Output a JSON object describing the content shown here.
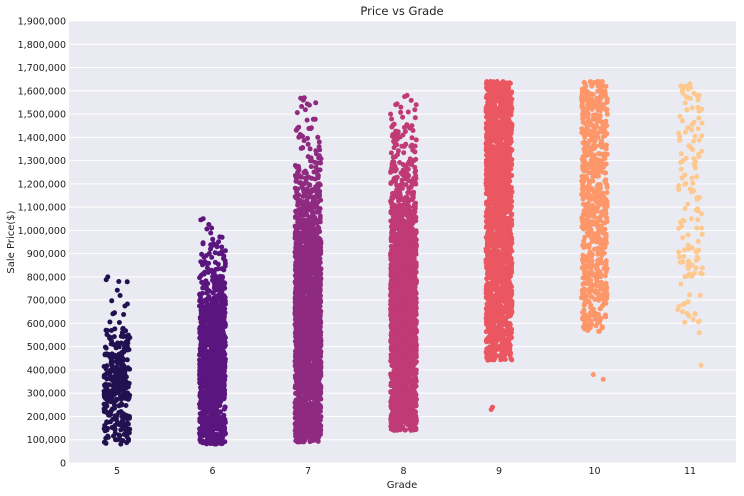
{
  "chart_data": {
    "type": "scatter",
    "style": "strip-plot",
    "title": "Price vs Grade",
    "xlabel": "Grade",
    "ylabel": "Sale Price($)",
    "categories": [
      "5",
      "6",
      "7",
      "8",
      "9",
      "10",
      "11"
    ],
    "ylim": [
      0,
      1900000
    ],
    "y_ticks": [
      0,
      100000,
      200000,
      300000,
      400000,
      500000,
      600000,
      700000,
      800000,
      900000,
      1000000,
      1100000,
      1200000,
      1300000,
      1400000,
      1500000,
      1600000,
      1700000,
      1800000,
      1900000
    ],
    "y_tick_labels": [
      "0",
      "100,000",
      "200,000",
      "300,000",
      "400,000",
      "500,000",
      "600,000",
      "700,000",
      "800,000",
      "900,000",
      "1,000,000",
      "1,100,000",
      "1,200,000",
      "1,300,000",
      "1,400,000",
      "1,500,000",
      "1,600,000",
      "1,700,000",
      "1,800,000",
      "1,900,000"
    ],
    "grid": true,
    "background": "#eaeaf2",
    "series": [
      {
        "category": "5",
        "color": "#221150",
        "min": 80000,
        "max": 800000,
        "count": 300,
        "outliers": [
          800000,
          780000,
          720000,
          560000,
          550000
        ]
      },
      {
        "category": "6",
        "color": "#5a167e",
        "min": 80000,
        "max": 1050000,
        "count": 1200,
        "outliers": [
          1050000,
          1045000,
          1010000,
          970000,
          930000,
          890000,
          820000,
          780000,
          760000
        ]
      },
      {
        "category": "7",
        "color": "#8f2a81",
        "min": 90000,
        "max": 1570000,
        "count": 2200,
        "outliers": [
          1570000,
          1560000,
          1400000,
          1350000,
          1200000,
          1150000,
          1100000,
          1090000
        ]
      },
      {
        "category": "8",
        "color": "#c03a76",
        "min": 140000,
        "max": 1580000,
        "count": 2200,
        "outliers": [
          1580000,
          1575000,
          1540000,
          1500000,
          1450000,
          1440000
        ]
      },
      {
        "category": "9",
        "color": "#eb5760",
        "min": 230000,
        "max": 1640000,
        "count": 1800,
        "outliers": [
          1640000,
          1630000,
          1620000,
          230000,
          240000
        ]
      },
      {
        "category": "10",
        "color": "#fd9668",
        "min": 360000,
        "max": 1640000,
        "count": 700,
        "outliers": [
          1640000,
          1630000,
          380000,
          360000
        ]
      },
      {
        "category": "11",
        "color": "#fdc98f",
        "min": 420000,
        "max": 1630000,
        "count": 140,
        "outliers": [
          1630000,
          1610000,
          650000,
          640000,
          560000,
          420000
        ]
      }
    ]
  }
}
